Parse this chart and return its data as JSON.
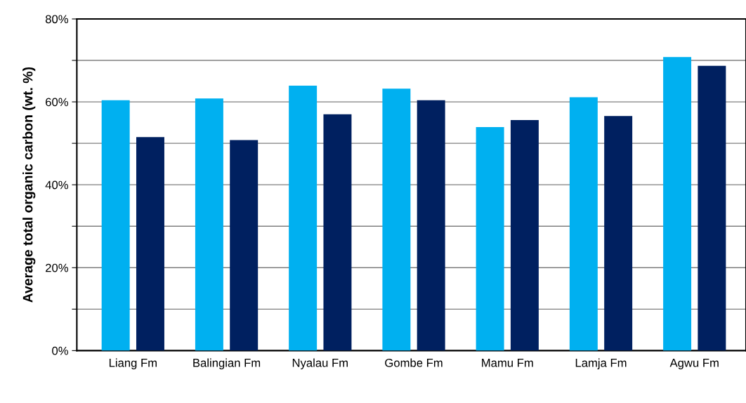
{
  "chart_data": {
    "type": "bar",
    "ylabel": "Average total organic carbon (wt. %)",
    "categories": [
      "Liang Fm",
      "Balingian Fm",
      "Nyalau Fm",
      "Gombe Fm",
      "Mamu Fm",
      "Lamja Fm",
      "Agwu Fm"
    ],
    "series": [
      {
        "color": "#00b0f0",
        "values": [
          60.4,
          60.8,
          63.9,
          63.2,
          53.9,
          61.1,
          70.8
        ]
      },
      {
        "color": "#002060",
        "values": [
          51.5,
          50.8,
          57.0,
          60.4,
          55.6,
          56.6,
          68.7
        ]
      }
    ],
    "ylim": [
      0,
      80
    ],
    "yticks": [
      {
        "value": 0,
        "label": "0%"
      },
      {
        "value": 10,
        "label": null
      },
      {
        "value": 20,
        "label": "20%"
      },
      {
        "value": 30,
        "label": null
      },
      {
        "value": 40,
        "label": "40%"
      },
      {
        "value": 50,
        "label": null
      },
      {
        "value": 60,
        "label": "60%"
      },
      {
        "value": 70,
        "label": null
      },
      {
        "value": 80,
        "label": "80%"
      }
    ],
    "grid": "y"
  }
}
